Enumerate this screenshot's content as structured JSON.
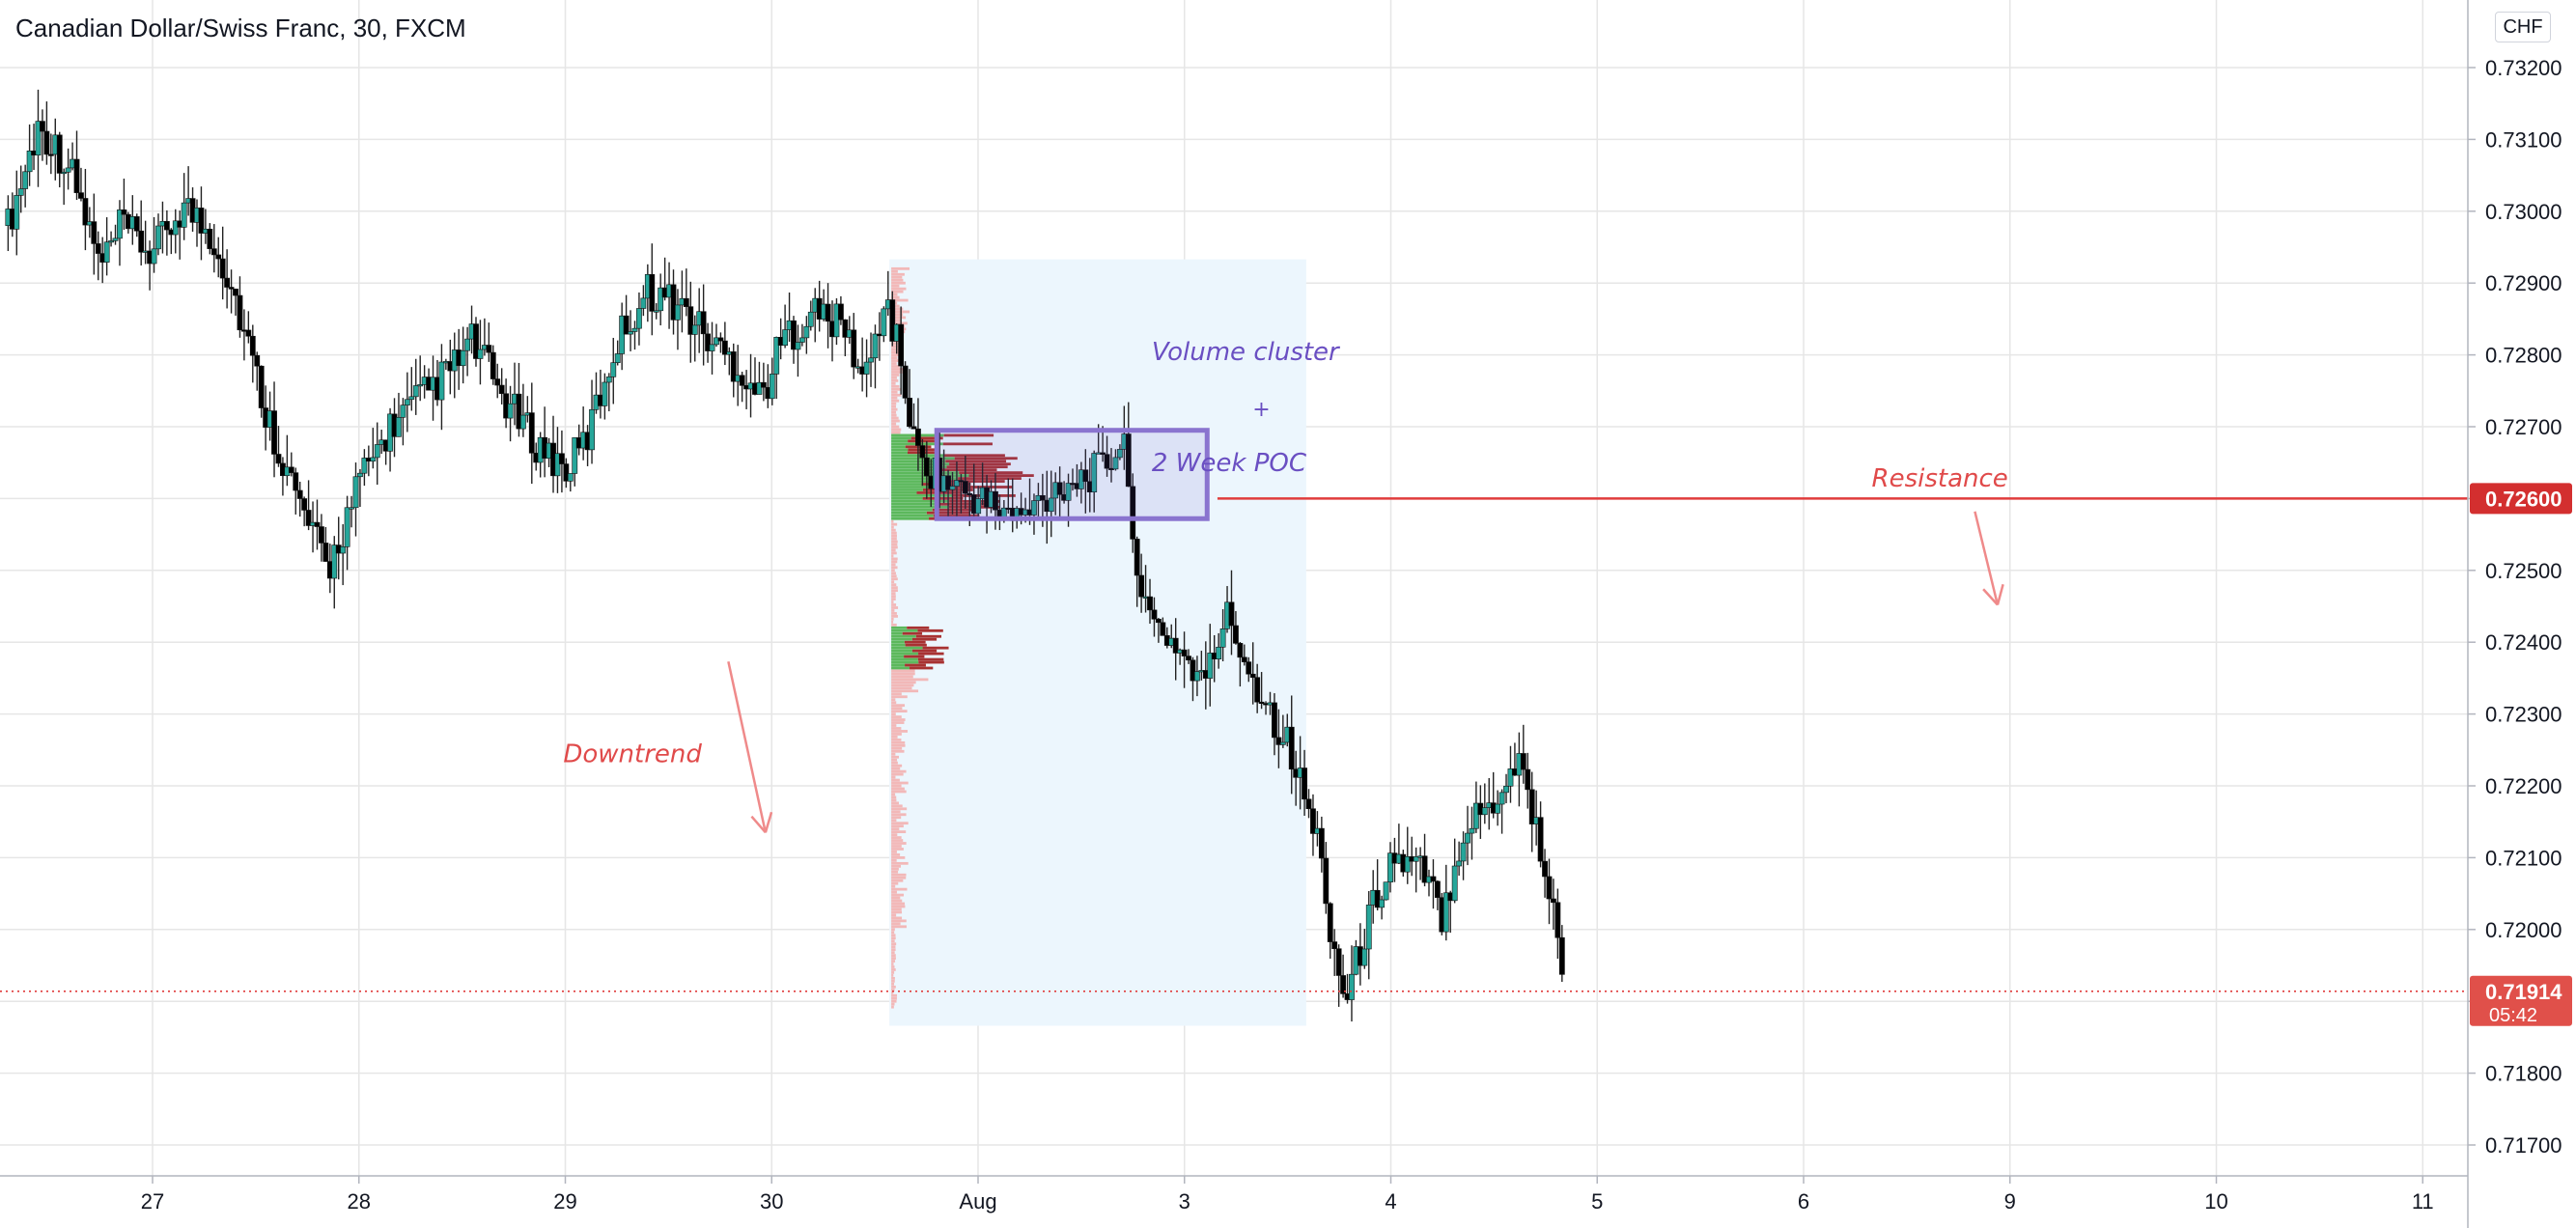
{
  "header": {
    "title": "Canadian Dollar/Swiss Franc, 30, FXCM",
    "currency_button": "CHF"
  },
  "colors": {
    "up": "#26a69a",
    "down": "#000000",
    "grid": "#e6e6e6",
    "resistance": "#e03c3c",
    "annotation_red": "#e04a4a",
    "annotation_purple": "#6a4fc2",
    "box_fill": "#ecf6fd",
    "bar_up": "#5cb85c",
    "bar_down": "#a83232",
    "bar_faint": "#f2b8b8"
  },
  "chart_data": {
    "type": "candlestick",
    "title": "Canadian Dollar/Swiss Franc, 30, FXCM",
    "x_ticks": [
      "27",
      "28",
      "29",
      "30",
      "Aug",
      "3",
      "4",
      "5",
      "6",
      "9",
      "10",
      "11"
    ],
    "y_ticks": [
      "0.73200",
      "0.73100",
      "0.73000",
      "0.72900",
      "0.72800",
      "0.72700",
      "0.72600",
      "0.72500",
      "0.72400",
      "0.72300",
      "0.72200",
      "0.72100",
      "0.72000",
      "0.71900",
      "0.71800",
      "0.71700"
    ],
    "ylim": [
      0.7166,
      0.7326
    ],
    "resistance": {
      "price": 0.726,
      "label": "0.72600",
      "text": "Resistance"
    },
    "last_price": {
      "price": 0.71914,
      "label": "0.71914",
      "countdown": "05:42"
    },
    "annotations": {
      "downtrend": "Downtrend",
      "cluster_line1": "Volume cluster",
      "plus": "+",
      "cluster_line2": "2 Week POC"
    },
    "price_path": [
      [
        26.3,
        0.7298
      ],
      [
        26.45,
        0.7312
      ],
      [
        26.6,
        0.7306
      ],
      [
        26.75,
        0.7292
      ],
      [
        26.85,
        0.7298
      ],
      [
        27.0,
        0.7294
      ],
      [
        27.15,
        0.7301
      ],
      [
        27.3,
        0.7296
      ],
      [
        27.4,
        0.7288
      ],
      [
        27.55,
        0.7272
      ],
      [
        27.7,
        0.726
      ],
      [
        27.85,
        0.725
      ],
      [
        28.0,
        0.7262
      ],
      [
        28.15,
        0.727
      ],
      [
        28.3,
        0.7274
      ],
      [
        28.45,
        0.7278
      ],
      [
        28.55,
        0.7282
      ],
      [
        28.7,
        0.7274
      ],
      [
        28.85,
        0.7268
      ],
      [
        29.0,
        0.7264
      ],
      [
        29.1,
        0.7268
      ],
      [
        29.25,
        0.7282
      ],
      [
        29.4,
        0.7289
      ],
      [
        29.55,
        0.7287
      ],
      [
        29.7,
        0.7282
      ],
      [
        29.85,
        0.7278
      ],
      [
        29.95,
        0.7274
      ],
      [
        30.05,
        0.7282
      ],
      [
        30.2,
        0.7286
      ],
      [
        30.35,
        0.7284
      ],
      [
        30.45,
        0.7276
      ],
      [
        30.55,
        0.7288
      ],
      [
        30.62,
        0.728
      ],
      [
        30.7,
        0.7266
      ],
      [
        30.85,
        0.7262
      ],
      [
        31.0,
        0.726
      ],
      [
        31.2,
        0.7257
      ],
      [
        31.4,
        0.7262
      ],
      [
        31.6,
        0.7264
      ],
      [
        31.7,
        0.7268
      ],
      [
        31.73,
        0.7262
      ],
      [
        31.8,
        0.7244
      ],
      [
        31.95,
        0.724
      ],
      [
        32.1,
        0.7234
      ],
      [
        32.2,
        0.7244
      ],
      [
        32.35,
        0.7234
      ],
      [
        32.5,
        0.7226
      ],
      [
        32.65,
        0.7212
      ],
      [
        32.72,
        0.7198
      ],
      [
        32.78,
        0.719
      ],
      [
        32.9,
        0.7202
      ],
      [
        33.0,
        0.721
      ],
      [
        33.15,
        0.7208
      ],
      [
        33.25,
        0.7202
      ],
      [
        33.35,
        0.7214
      ],
      [
        33.5,
        0.7218
      ],
      [
        33.62,
        0.7224
      ],
      [
        33.7,
        0.7215
      ],
      [
        33.78,
        0.7203
      ],
      [
        33.85,
        0.7193
      ]
    ]
  }
}
